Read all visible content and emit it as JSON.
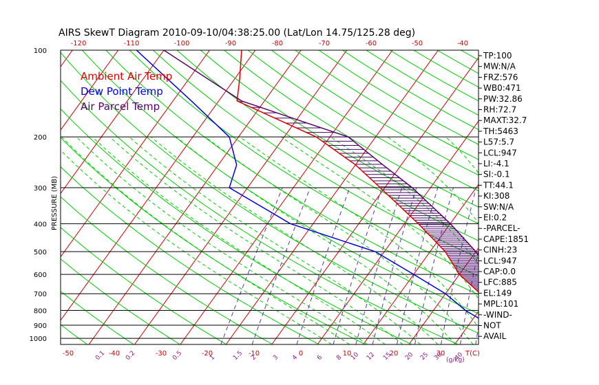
{
  "title": "AIRS SkewT Diagram 2010-09-10/04:38:25.00 (Lat/Lon 14.75/125.28 deg)",
  "legend": [
    {
      "label": "Ambient Air Temp",
      "color": "#dd0000"
    },
    {
      "label": "Dew Point Temp",
      "color": "#0000dd"
    },
    {
      "label": "Air Parcel Temp",
      "color": "#550066"
    }
  ],
  "colors": {
    "isotherm": "#cc0000",
    "dry_adiabat": "#00cc00",
    "moist_adiabat": "#00cc00",
    "mixing_ratio": "#5533aa",
    "isobar": "#000000",
    "hatch": "#440066",
    "axis_text": "#000000",
    "label_red": "#cc0000",
    "label_purple": "#8a1a8a"
  },
  "y_axis": {
    "title": "PRESSURE (MB)",
    "ticks": [
      "100",
      "200",
      "300",
      "400",
      "500",
      "600",
      "700",
      "800",
      "900",
      "1000"
    ]
  },
  "top_axis_ticks": [
    "-120",
    "-110",
    "-100",
    "-90",
    "-80",
    "-70",
    "-60",
    "-50",
    "-40"
  ],
  "bottom_axis_ticks": [
    "-50",
    "-40",
    "-30",
    "-20",
    "-10",
    "0",
    "10",
    "20",
    "30"
  ],
  "bottom_axis_unit": "T(C)",
  "mixing_ratio_labels": [
    "0.1",
    "0.2",
    "0.5",
    "1",
    "1.5",
    "2",
    "3",
    "4",
    "6",
    "8",
    "10",
    "12",
    "15",
    "20",
    "25",
    "30",
    "40"
  ],
  "mixing_ratio_unit": "(g/kg)",
  "indices": [
    "TP:100",
    "MW:N/A",
    "FRZ:576",
    "WB0:471",
    "PW:32.86",
    "RH:72.7",
    "MAXT:32.7",
    "TH:5463",
    "L57:5.7",
    "LCL:947",
    "LI:-4.1",
    "SI:-0.1",
    "TT:44.1",
    "KI:308",
    "SW:N/A",
    "EI:0.2",
    "-PARCEL-",
    "CAPE:1851",
    "CINH:23",
    "LCL:947",
    "CAP:0.0",
    "LFC:885",
    "EL:149",
    "MPL:101",
    "-WIND-",
    " NOT",
    " AVAIL"
  ],
  "chart_data": {
    "type": "line",
    "title": "AIRS SkewT Diagram 2010-09-10/04:38:25.00 (Lat/Lon 14.75/125.28 deg)",
    "xlabel": "T(C)",
    "ylabel": "PRESSURE (MB)",
    "ylim": [
      1050,
      100
    ],
    "series": [
      {
        "name": "Ambient Air Temp",
        "points": [
          {
            "p": 1030,
            "t": 27.3
          },
          {
            "p": 1000,
            "t": 25.0
          },
          {
            "p": 950,
            "t": 22.5
          },
          {
            "p": 900,
            "t": 20.0
          },
          {
            "p": 850,
            "t": 17.0
          },
          {
            "p": 800,
            "t": 13.0
          },
          {
            "p": 700,
            "t": 7.6
          },
          {
            "p": 600,
            "t": 0.0
          },
          {
            "p": 500,
            "t": -6.7
          },
          {
            "p": 400,
            "t": -17.0
          },
          {
            "p": 300,
            "t": -31.0
          },
          {
            "p": 250,
            "t": -40.0
          },
          {
            "p": 200,
            "t": -53.0
          },
          {
            "p": 150,
            "t": -76.0
          },
          {
            "p": 125,
            "t": -79.0
          },
          {
            "p": 100,
            "t": -83.0
          }
        ]
      },
      {
        "name": "Dew Point Temp",
        "points": [
          {
            "p": 1030,
            "t": 21.0
          },
          {
            "p": 1000,
            "t": 20.0
          },
          {
            "p": 950,
            "t": 17.0
          },
          {
            "p": 900,
            "t": 13.5
          },
          {
            "p": 850,
            "t": 11.0
          },
          {
            "p": 800,
            "t": 7.0
          },
          {
            "p": 700,
            "t": 0.0
          },
          {
            "p": 600,
            "t": -10.0
          },
          {
            "p": 500,
            "t": -22.0
          },
          {
            "p": 400,
            "t": -45.0
          },
          {
            "p": 300,
            "t": -64.0
          },
          {
            "p": 250,
            "t": -66.0
          },
          {
            "p": 200,
            "t": -72.0
          },
          {
            "p": 150,
            "t": -86.0
          },
          {
            "p": 100,
            "t": -106.0
          }
        ]
      },
      {
        "name": "Air Parcel Temp",
        "points": [
          {
            "p": 1030,
            "t": 27.3
          },
          {
            "p": 947,
            "t": 20.5
          },
          {
            "p": 900,
            "t": 20.5
          },
          {
            "p": 800,
            "t": 17.5
          },
          {
            "p": 700,
            "t": 13.0
          },
          {
            "p": 600,
            "t": 7.0
          },
          {
            "p": 500,
            "t": 0.0
          },
          {
            "p": 400,
            "t": -10.0
          },
          {
            "p": 300,
            "t": -24.0
          },
          {
            "p": 250,
            "t": -34.0
          },
          {
            "p": 200,
            "t": -46.0
          },
          {
            "p": 150,
            "t": -75.0
          },
          {
            "p": 100,
            "t": -100.0
          }
        ]
      }
    ]
  }
}
